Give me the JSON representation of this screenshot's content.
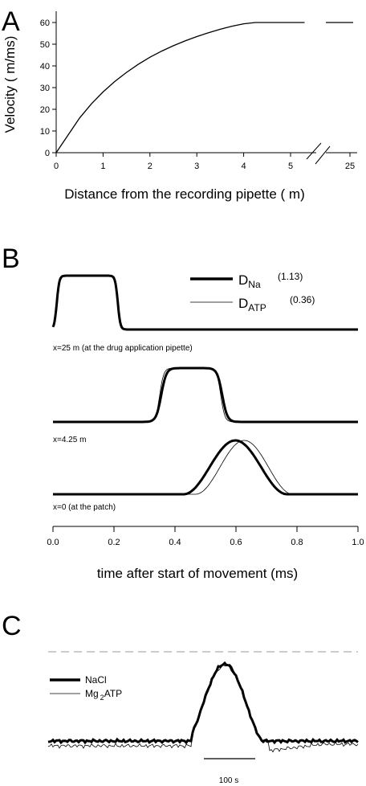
{
  "panels": {
    "A": {
      "letter": "A",
      "chart_data": {
        "type": "line",
        "xlabel": "Distance from the recording pipette ( m)",
        "ylabel": "Velocity ( m/ms)",
        "x_ticks": [
          "0",
          "1",
          "2",
          "3",
          "4",
          "5",
          "25"
        ],
        "y_ticks": [
          "0",
          "10",
          "20",
          "30",
          "40",
          "50",
          "60"
        ],
        "xlim": [
          0,
          5.8
        ],
        "ylim": [
          0,
          65
        ],
        "axis_break": true,
        "series": [
          {
            "x": [
              0,
              0.25,
              0.5,
              0.75,
              1.0,
              1.25,
              1.5,
              1.75,
              2.0,
              2.25,
              2.5,
              2.75,
              3.0,
              3.25,
              3.5,
              3.75,
              4.0,
              4.25,
              5.3
            ],
            "y": [
              0,
              8,
              16,
              22.5,
              28,
              32.8,
              37,
              40.7,
              44,
              46.8,
              49.3,
              51.5,
              53.5,
              55.3,
              56.9,
              58.3,
              59.4,
              60,
              60
            ]
          }
        ],
        "after_break_segment": {
          "x": [
            25.0,
            25.4
          ],
          "y": [
            60,
            60
          ]
        }
      }
    },
    "B": {
      "letter": "B",
      "chart_data": {
        "type": "line",
        "xlabel": "time after start of movement (ms)",
        "x_ticks": [
          "0.0",
          "0.2",
          "0.4",
          "0.6",
          "0.8",
          "1.0"
        ],
        "xlim": [
          0,
          1.0
        ],
        "legend": [
          {
            "main": "D",
            "sub": "Na",
            "value": "(1.13)",
            "style": "thick"
          },
          {
            "main": "D",
            "sub": "ATP",
            "value": "(0.36)",
            "style": "thin"
          }
        ],
        "traces": [
          {
            "caption": "x=25 m (at the drug application pipette)",
            "thick": {
              "on": 0.0,
              "off": 0.2,
              "rise": 0.025
            },
            "thin": {
              "on": 0.0,
              "off": 0.2,
              "rise": 0.025
            }
          },
          {
            "caption": "x=4.25 m",
            "thick": {
              "on": 0.33,
              "off": 0.53,
              "rise": 0.05
            },
            "thin": {
              "on": 0.33,
              "off": 0.53,
              "rise": 0.04
            }
          },
          {
            "caption": "x=0 (at the patch)",
            "thick": {
              "on": 0.42,
              "off": 0.76,
              "rise": 0.16
            },
            "thin": {
              "on": 0.46,
              "off": 0.78,
              "rise": 0.14
            }
          }
        ]
      }
    },
    "C": {
      "letter": "C",
      "chart_data": {
        "type": "line",
        "legend": [
          {
            "name": "NaCl",
            "style": "thick"
          },
          {
            "name": "Mg",
            "sub": "2",
            "suffix": "ATP",
            "style": "thin"
          }
        ],
        "scale_bar_label": "100 s",
        "dashed_baseline": true
      }
    }
  }
}
